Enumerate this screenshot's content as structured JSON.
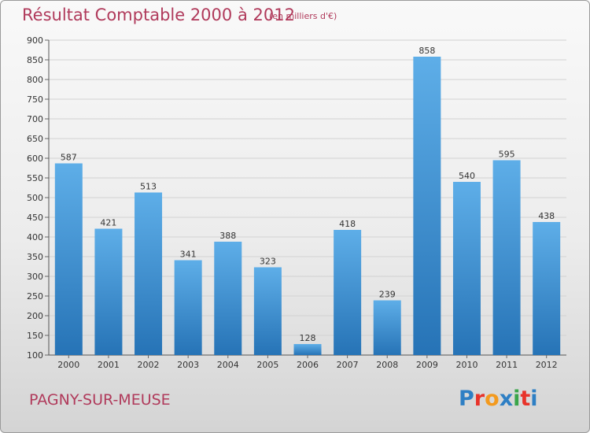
{
  "chart": {
    "title": "Résultat Comptable 2000 à 2012",
    "subtitle": "(en milliers d'€)",
    "commune": "PAGNY-SUR-MEUSE",
    "logo": {
      "text": "Proxiti",
      "letter_colors": [
        "#2e7fc4",
        "#e8332a",
        "#f39a1e",
        "#2e7fc4",
        "#3aa54a",
        "#e8332a",
        "#2e7fc4"
      ]
    },
    "colors": {
      "bar_top": "#5eaee8",
      "bar_bottom": "#2673b6",
      "title": "#b03a5b"
    }
  },
  "chart_data": {
    "type": "bar",
    "title": "Résultat Comptable 2000 à 2012",
    "subtitle": "(en milliers d'€)",
    "categories": [
      "2000",
      "2001",
      "2002",
      "2003",
      "2004",
      "2005",
      "2006",
      "2007",
      "2008",
      "2009",
      "2010",
      "2011",
      "2012"
    ],
    "values": [
      587,
      421,
      513,
      341,
      388,
      323,
      128,
      418,
      239,
      858,
      540,
      595,
      438
    ],
    "ylim": [
      100,
      900
    ],
    "yticks": [
      100,
      150,
      200,
      250,
      300,
      350,
      400,
      450,
      500,
      550,
      600,
      650,
      700,
      750,
      800,
      850,
      900
    ],
    "grid": true,
    "legend": "none"
  }
}
